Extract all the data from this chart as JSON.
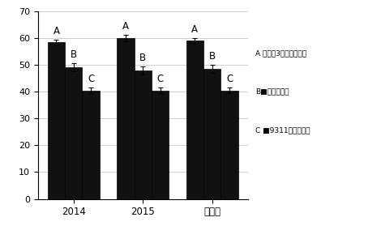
{
  "groups": [
    "2014",
    "2015",
    "平均値"
  ],
  "series": [
    {
      "label": "A",
      "legend_label": "A 荷花塘3号纯合基因型",
      "values": [
        58.5,
        60.0,
        59.0
      ],
      "errors": [
        1.0,
        1.2,
        1.0
      ],
      "color": "#111111",
      "show_square": false
    },
    {
      "label": "B",
      "legend_label": "B■杂合基因型",
      "values": [
        49.0,
        48.0,
        48.5
      ],
      "errors": [
        1.5,
        1.5,
        1.5
      ],
      "color": "#111111",
      "show_square": true
    },
    {
      "label": "C",
      "legend_label": "C ■9311纯合基因型",
      "values": [
        40.5,
        40.5,
        40.5
      ],
      "errors": [
        1.0,
        1.0,
        1.0
      ],
      "color": "#111111",
      "show_square": true
    }
  ],
  "ylim": [
    0,
    70
  ],
  "yticks": [
    0,
    10,
    20,
    30,
    40,
    50,
    60,
    70
  ],
  "bar_width": 0.25,
  "background_color": "#ffffff",
  "grid_color": "#bbbbbb",
  "legend_A": "A 荷花塘3号纯合基因型",
  "legend_B": "B■杂合基因型",
  "legend_C": "C ■9311纯合基因型"
}
